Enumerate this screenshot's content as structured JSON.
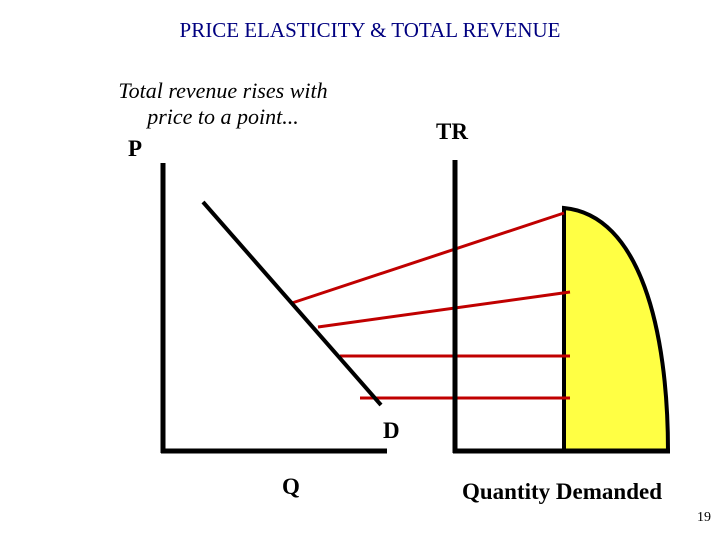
{
  "slide": {
    "title": "PRICE ELASTICITY & TOTAL REVENUE",
    "note": "Total revenue rises with price to a point...",
    "page_number": "19"
  },
  "labels": {
    "price_axis": "P",
    "quantity_axis": "Q",
    "demand_curve": "D",
    "tr_axis": "TR",
    "quantity_demanded_axis": "Quantity Demanded"
  },
  "colors": {
    "title": "#000080",
    "axes": "#000000",
    "demand_line": "#000000",
    "connectors": "#c00000",
    "tr_fill": "#ffff44"
  }
}
